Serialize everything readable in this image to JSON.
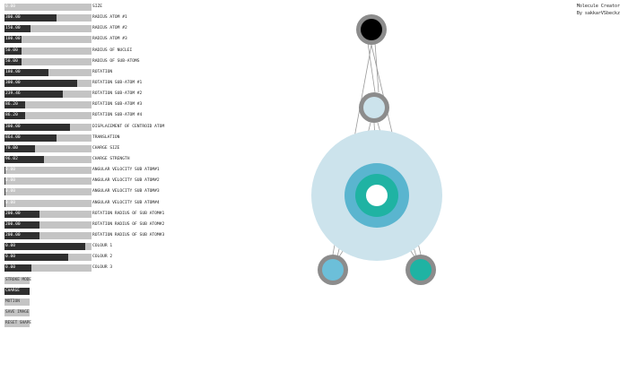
{
  "header": {
    "title": "Molecule Creator",
    "author": "By sakkarVSbeckz"
  },
  "sliders": [
    {
      "label": "SIZE",
      "value": "0.00",
      "fraction": 0.0
    },
    {
      "label": "RADIUS ATOM #1",
      "value": "300.00",
      "fraction": 0.6
    },
    {
      "label": "RADIUS ATOM #2",
      "value": "150.00",
      "fraction": 0.3
    },
    {
      "label": "RADIUS ATOM #3",
      "value": "100.00",
      "fraction": 0.2
    },
    {
      "label": "RADIUS OF NUCLEI",
      "value": "50.00",
      "fraction": 0.2
    },
    {
      "label": "RADIUS OF SUB-ATOMS",
      "value": "50.00",
      "fraction": 0.2
    },
    {
      "label": "ROTATION",
      "value": "180.00",
      "fraction": 0.5
    },
    {
      "label": "ROTATION SUB-ATOM #1",
      "value": "300.00",
      "fraction": 0.83
    },
    {
      "label": "ROTATION SUB-ATOM #2",
      "value": "239.46",
      "fraction": 0.67
    },
    {
      "label": "ROTATION SUB-ATOM #3",
      "value": "86.20",
      "fraction": 0.24
    },
    {
      "label": "ROTATION SUB-ATOM #4",
      "value": "86.20",
      "fraction": 0.24
    },
    {
      "label": "DISPLACEMENT OF CENTROID ATOM",
      "value": "300.00",
      "fraction": 0.75
    },
    {
      "label": "TRANSLATION",
      "value": "864.00",
      "fraction": 0.6
    },
    {
      "label": "CHARGE SIZE",
      "value": "70.00",
      "fraction": 0.35
    },
    {
      "label": "CHARGE STRENGTH",
      "value": "96.02",
      "fraction": 0.45
    },
    {
      "label": "ANGULAR VELOCITY SUB ATOM#1",
      "value": "0.00",
      "fraction": 0.01
    },
    {
      "label": "ANGULAR VELOCITY SUB ATOM#2",
      "value": "0.00",
      "fraction": 0.01
    },
    {
      "label": "ANGULAR VELOCITY SUB ATOM#3",
      "value": "0.00",
      "fraction": 0.01
    },
    {
      "label": "ANGULAR VELOCITY SUB ATOM#4",
      "value": "0.00",
      "fraction": 0.01
    },
    {
      "label": "ROTATION RADIUS OF SUB ATOM#1",
      "value": "200.00",
      "fraction": 0.4
    },
    {
      "label": "ROTATION RADIUS OF SUB ATOM#2",
      "value": "200.00",
      "fraction": 0.4
    },
    {
      "label": "ROTATION RADIUS OF SUB ATOM#3",
      "value": "200.00",
      "fraction": 0.4
    },
    {
      "label": "COLOUR 1",
      "value": "0.00",
      "fraction": 0.93
    },
    {
      "label": "COLOUR 2",
      "value": "0.00",
      "fraction": 0.73
    },
    {
      "label": "COLOUR 3",
      "value": "0.00",
      "fraction": 0.31
    }
  ],
  "buttons": [
    {
      "label": "STROKE MODE",
      "active": false
    },
    {
      "label": "CHARGE",
      "active": true
    },
    {
      "label": "MOTION",
      "active": false
    },
    {
      "label": "SAVE IMAGE",
      "active": false
    },
    {
      "label": "RESET SHAPE",
      "active": false
    }
  ],
  "colors": {
    "track": "#c4c4c4",
    "fill": "#2f2f2f",
    "halo": "#cce3ec",
    "charge_ring": "#5ab5cf",
    "nucleus_ring": "#1fb3a3",
    "atom_outline": "#8c8c8c",
    "top_atom_core": "#000000",
    "mid_atom_core": "#cce3ec",
    "bottom_left_core": "#6cbfd9",
    "bottom_right_core": "#1fb3a3",
    "bond_line": "#9a9a9a"
  }
}
